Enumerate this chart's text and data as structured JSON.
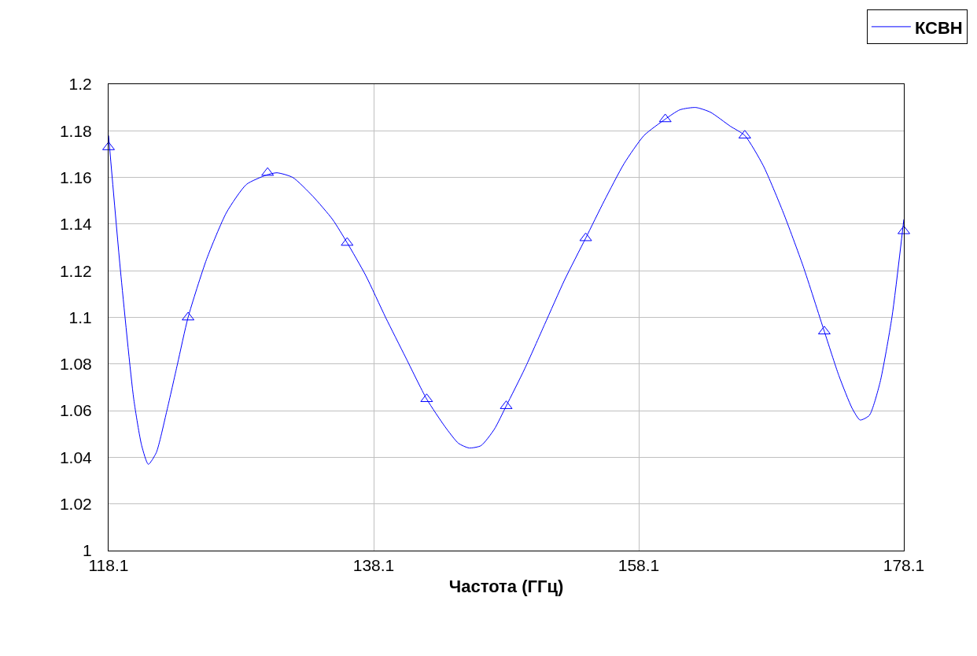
{
  "chart_data": {
    "type": "line",
    "xlabel": "Частота (ГГц)",
    "xlim": [
      118.1,
      178.1
    ],
    "xticks": [
      118.1,
      138.1,
      158.1,
      178.1
    ],
    "ylim": [
      1,
      1.2
    ],
    "yticks": [
      1,
      1.02,
      1.04,
      1.06,
      1.08,
      1.1,
      1.12,
      1.14,
      1.16,
      1.18,
      1.2
    ],
    "grid": true,
    "legend": "top right",
    "line_style": "solid",
    "series": [
      {
        "name": "КСВН",
        "marker": "none",
        "color": "#0000ff",
        "x": [
          118.1,
          119.0,
          120.0,
          120.6,
          121.1,
          121.7,
          122.5,
          123.3,
          124.1,
          125.5,
          127,
          128.5,
          130,
          130.8,
          132,
          133.5,
          135,
          136.1,
          137.5,
          139,
          140.5,
          142.1,
          143.5,
          144.5,
          145.3,
          146.2,
          147.2,
          148.1,
          149.5,
          151,
          152.5,
          154.1,
          155.5,
          157,
          158.5,
          160.1,
          161.2,
          162.4,
          163.5,
          165,
          166.1,
          167.5,
          169,
          170.5,
          172.1,
          173.2,
          174.2,
          174.8,
          175.5,
          176.3,
          177.2,
          178.1
        ],
        "values": [
          1.178,
          1.12,
          1.065,
          1.045,
          1.037,
          1.042,
          1.06,
          1.08,
          1.1,
          1.125,
          1.145,
          1.157,
          1.161,
          1.162,
          1.16,
          1.152,
          1.142,
          1.132,
          1.118,
          1.1,
          1.083,
          1.065,
          1.053,
          1.046,
          1.044,
          1.045,
          1.052,
          1.062,
          1.078,
          1.097,
          1.116,
          1.134,
          1.15,
          1.166,
          1.178,
          1.185,
          1.189,
          1.19,
          1.188,
          1.182,
          1.178,
          1.165,
          1.145,
          1.122,
          1.094,
          1.075,
          1.061,
          1.056,
          1.058,
          1.072,
          1.1,
          1.142
        ]
      },
      {
        "type": "scatter",
        "marker": "triangle",
        "color": "#0000ff",
        "x": [
          118.1,
          124.1,
          130.1,
          136.1,
          142.1,
          148.1,
          154.1,
          160.1,
          166.1,
          172.1,
          178.1
        ],
        "values": [
          1.173,
          1.1,
          1.162,
          1.132,
          1.065,
          1.062,
          1.134,
          1.185,
          1.178,
          1.094,
          1.137
        ]
      }
    ]
  }
}
